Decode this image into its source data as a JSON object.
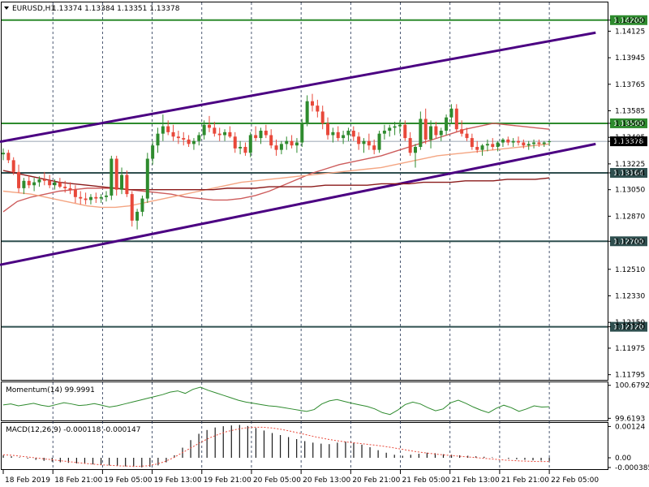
{
  "header": {
    "symbol": "EURUSD,H1",
    "ohlc": "1.13374 1.13384 1.13351 1.13378"
  },
  "chart_data": {
    "type": "candlestick",
    "price_axis": {
      "ticks": [
        "1.14200",
        "1.14125",
        "1.13945",
        "1.13765",
        "1.13585",
        "1.13500",
        "1.13405",
        "1.13378",
        "1.13225",
        "1.13164",
        "1.13050",
        "1.12870",
        "1.12700",
        "1.12510",
        "1.12330",
        "1.12150",
        "1.12120",
        "1.11975",
        "1.11795"
      ],
      "ylim": [
        1.1176,
        1.1432
      ]
    },
    "time_axis": {
      "labels": [
        "18 Feb 2019",
        "18 Feb 21:00",
        "19 Feb 05:00",
        "19 Feb 13:00",
        "19 Feb 21:00",
        "20 Feb 05:00",
        "20 Feb 13:00",
        "20 Feb 21:00",
        "21 Feb 05:00",
        "21 Feb 13:00",
        "21 Feb 21:00",
        "22 Feb 05:00"
      ]
    },
    "horizontal_levels": [
      {
        "price": 1.142,
        "label": "1.14200",
        "color": "#2e8b2e"
      },
      {
        "price": 1.135,
        "label": "1.13500",
        "color": "#2e8b2e"
      },
      {
        "price": 1.13164,
        "label": "1.13164",
        "color": "#2f4f4f"
      },
      {
        "price": 1.127,
        "label": "1.12700",
        "color": "#2f4f4f"
      },
      {
        "price": 1.1212,
        "label": "1.12120",
        "color": "#2f4f4f"
      }
    ],
    "current_price": {
      "price": 1.13378,
      "label": "1.13378"
    },
    "trendlines": [
      {
        "from": [
          0,
          1.13375
        ],
        "to": [
          115,
          1.14115
        ],
        "color": "#4b0082"
      },
      {
        "from": [
          0,
          1.1254
        ],
        "to": [
          115,
          1.1336
        ],
        "color": "#4b0082"
      }
    ],
    "candles": [
      [
        1.1329,
        1.1333,
        1.1325,
        1.133
      ],
      [
        1.133,
        1.1332,
        1.1323,
        1.1325
      ],
      [
        1.1325,
        1.1327,
        1.1315,
        1.1317
      ],
      [
        1.1317,
        1.1322,
        1.1303,
        1.1306
      ],
      [
        1.1306,
        1.1313,
        1.1302,
        1.1311
      ],
      [
        1.1311,
        1.1315,
        1.1306,
        1.1308
      ],
      [
        1.1308,
        1.1313,
        1.1304,
        1.131
      ],
      [
        1.131,
        1.1314,
        1.1307,
        1.1312
      ],
      [
        1.1312,
        1.1317,
        1.1308,
        1.1311
      ],
      [
        1.1311,
        1.1315,
        1.1306,
        1.1308
      ],
      [
        1.1308,
        1.1312,
        1.1305,
        1.131
      ],
      [
        1.131,
        1.1313,
        1.1306,
        1.1307
      ],
      [
        1.1307,
        1.1311,
        1.1303,
        1.1306
      ],
      [
        1.1306,
        1.131,
        1.1302,
        1.1305
      ],
      [
        1.1305,
        1.1308,
        1.1296,
        1.13
      ],
      [
        1.13,
        1.1304,
        1.1295,
        1.1299
      ],
      [
        1.1299,
        1.1303,
        1.1295,
        1.1298
      ],
      [
        1.1298,
        1.1302,
        1.1295,
        1.13
      ],
      [
        1.13,
        1.1303,
        1.1296,
        1.1299
      ],
      [
        1.1299,
        1.1302,
        1.1296,
        1.13
      ],
      [
        1.13,
        1.1304,
        1.1297,
        1.1301
      ],
      [
        1.1301,
        1.1328,
        1.1298,
        1.1326
      ],
      [
        1.1326,
        1.1328,
        1.1301,
        1.1305
      ],
      [
        1.1305,
        1.132,
        1.1302,
        1.1315
      ],
      [
        1.1315,
        1.1318,
        1.13,
        1.1302
      ],
      [
        1.1302,
        1.1304,
        1.128,
        1.1284
      ],
      [
        1.1284,
        1.1292,
        1.1278,
        1.129
      ],
      [
        1.129,
        1.1301,
        1.1287,
        1.1299
      ],
      [
        1.1299,
        1.133,
        1.1296,
        1.1326
      ],
      [
        1.1326,
        1.1338,
        1.1322,
        1.1335
      ],
      [
        1.1335,
        1.1347,
        1.133,
        1.1343
      ],
      [
        1.1343,
        1.1356,
        1.1338,
        1.1348
      ],
      [
        1.1348,
        1.1352,
        1.1342,
        1.1344
      ],
      [
        1.1344,
        1.1349,
        1.1338,
        1.1341
      ],
      [
        1.1341,
        1.1345,
        1.1336,
        1.134
      ],
      [
        1.134,
        1.1344,
        1.1335,
        1.1339
      ],
      [
        1.1339,
        1.1342,
        1.1334,
        1.1336
      ],
      [
        1.1336,
        1.134,
        1.1332,
        1.1338
      ],
      [
        1.1338,
        1.1344,
        1.1335,
        1.1342
      ],
      [
        1.1342,
        1.1352,
        1.1339,
        1.1349
      ],
      [
        1.1349,
        1.1355,
        1.1344,
        1.1347
      ],
      [
        1.1347,
        1.1351,
        1.1341,
        1.1343
      ],
      [
        1.1343,
        1.1347,
        1.1338,
        1.1342
      ],
      [
        1.1342,
        1.1346,
        1.1338,
        1.1344
      ],
      [
        1.1344,
        1.1348,
        1.134,
        1.1341
      ],
      [
        1.1341,
        1.1344,
        1.133,
        1.1333
      ],
      [
        1.1333,
        1.1338,
        1.1329,
        1.1334
      ],
      [
        1.1334,
        1.1337,
        1.1328,
        1.133
      ],
      [
        1.133,
        1.1344,
        1.1327,
        1.1342
      ],
      [
        1.1342,
        1.1348,
        1.1338,
        1.134
      ],
      [
        1.134,
        1.1347,
        1.1336,
        1.1345
      ],
      [
        1.1345,
        1.1349,
        1.134,
        1.1342
      ],
      [
        1.1342,
        1.1346,
        1.1333,
        1.1335
      ],
      [
        1.1335,
        1.1339,
        1.1328,
        1.1332
      ],
      [
        1.1332,
        1.1338,
        1.1329,
        1.1336
      ],
      [
        1.1336,
        1.1341,
        1.1332,
        1.1338
      ],
      [
        1.1338,
        1.1342,
        1.1333,
        1.1335
      ],
      [
        1.1335,
        1.134,
        1.133,
        1.1337
      ],
      [
        1.1337,
        1.1353,
        1.1334,
        1.135
      ],
      [
        1.135,
        1.1369,
        1.1348,
        1.1365
      ],
      [
        1.1365,
        1.137,
        1.1358,
        1.1362
      ],
      [
        1.1362,
        1.1366,
        1.1354,
        1.1358
      ],
      [
        1.1358,
        1.1362,
        1.1346,
        1.135
      ],
      [
        1.135,
        1.1354,
        1.1339,
        1.1342
      ],
      [
        1.1342,
        1.1347,
        1.1337,
        1.1344
      ],
      [
        1.1344,
        1.1348,
        1.1338,
        1.134
      ],
      [
        1.134,
        1.1345,
        1.1336,
        1.1342
      ],
      [
        1.1342,
        1.1347,
        1.1338,
        1.1345
      ],
      [
        1.1345,
        1.1348,
        1.1338,
        1.1341
      ],
      [
        1.1341,
        1.1344,
        1.1332,
        1.1336
      ],
      [
        1.1336,
        1.134,
        1.133,
        1.1338
      ],
      [
        1.1338,
        1.1343,
        1.1332,
        1.1335
      ],
      [
        1.1335,
        1.1339,
        1.1329,
        1.1332
      ],
      [
        1.1332,
        1.1345,
        1.133,
        1.1343
      ],
      [
        1.1343,
        1.1349,
        1.1339,
        1.1345
      ],
      [
        1.1345,
        1.1349,
        1.1341,
        1.1347
      ],
      [
        1.1347,
        1.1351,
        1.1342,
        1.1348
      ],
      [
        1.1348,
        1.1352,
        1.1343,
        1.1349
      ],
      [
        1.1349,
        1.1352,
        1.1338,
        1.134
      ],
      [
        1.134,
        1.1344,
        1.1328,
        1.133
      ],
      [
        1.133,
        1.1336,
        1.132,
        1.1334
      ],
      [
        1.1334,
        1.1358,
        1.1332,
        1.1353
      ],
      [
        1.1353,
        1.136,
        1.1336,
        1.1339
      ],
      [
        1.1339,
        1.1352,
        1.1333,
        1.1348
      ],
      [
        1.1348,
        1.1351,
        1.134,
        1.1342
      ],
      [
        1.1342,
        1.1347,
        1.1338,
        1.1345
      ],
      [
        1.1345,
        1.1356,
        1.1342,
        1.1354
      ],
      [
        1.1354,
        1.1363,
        1.135,
        1.136
      ],
      [
        1.136,
        1.1363,
        1.1344,
        1.1346
      ],
      [
        1.1346,
        1.1352,
        1.1341,
        1.1343
      ],
      [
        1.1343,
        1.1347,
        1.1338,
        1.134
      ],
      [
        1.134,
        1.1343,
        1.1332,
        1.1334
      ],
      [
        1.1334,
        1.1338,
        1.133,
        1.1332
      ],
      [
        1.1332,
        1.1336,
        1.1328,
        1.1335
      ],
      [
        1.1335,
        1.1339,
        1.1331,
        1.1336
      ],
      [
        1.1336,
        1.134,
        1.1332,
        1.1334
      ],
      [
        1.1334,
        1.1338,
        1.1331,
        1.1337
      ],
      [
        1.1337,
        1.134,
        1.1334,
        1.1339
      ],
      [
        1.1339,
        1.1341,
        1.1335,
        1.1337
      ],
      [
        1.1337,
        1.134,
        1.1334,
        1.1338
      ],
      [
        1.1338,
        1.1341,
        1.1335,
        1.1337
      ],
      [
        1.1337,
        1.1339,
        1.1333,
        1.1335
      ],
      [
        1.1335,
        1.1338,
        1.1332,
        1.1336
      ],
      [
        1.1336,
        1.1339,
        1.1333,
        1.1337
      ],
      [
        1.1337,
        1.1339,
        1.1334,
        1.1336
      ],
      [
        1.1336,
        1.1338,
        1.1334,
        1.1337
      ],
      [
        1.13374,
        1.13384,
        1.13351,
        1.13378
      ]
    ],
    "moving_averages": [
      {
        "color": "#cd5c5c",
        "values": [
          1.129,
          1.1297,
          1.13,
          1.1302,
          1.1304,
          1.1305,
          1.1306,
          1.1306,
          1.1306,
          1.1305,
          1.1304,
          1.1303,
          1.1302,
          1.13,
          1.1299,
          1.1298,
          1.1298,
          1.1299,
          1.1301,
          1.1304,
          1.1308,
          1.1312,
          1.1316,
          1.1319,
          1.1322,
          1.1324,
          1.1326,
          1.1328,
          1.1331,
          1.1334,
          1.1337,
          1.134,
          1.1343,
          1.1346,
          1.1348,
          1.135,
          1.1349,
          1.1348,
          1.1347,
          1.1346
        ]
      },
      {
        "color": "#f4a582",
        "values": [
          1.1304,
          1.1303,
          1.1302,
          1.13,
          1.1298,
          1.1296,
          1.1294,
          1.1293,
          1.1293,
          1.1294,
          1.1296,
          1.1298,
          1.13,
          1.1302,
          1.1304,
          1.1306,
          1.1308,
          1.131,
          1.1311,
          1.1312,
          1.1313,
          1.1314,
          1.1315,
          1.1316,
          1.1317,
          1.1318,
          1.1319,
          1.132,
          1.1322,
          1.1324,
          1.1326,
          1.1328,
          1.1329,
          1.133,
          1.1331,
          1.1332,
          1.1333,
          1.1334,
          1.1335,
          1.1336
        ]
      },
      {
        "color": "#8b1a1a",
        "values": [
          1.1318,
          1.1316,
          1.1314,
          1.1312,
          1.131,
          1.1309,
          1.1308,
          1.1307,
          1.1306,
          1.1305,
          1.1305,
          1.1305,
          1.1305,
          1.1305,
          1.1305,
          1.1305,
          1.1306,
          1.1306,
          1.1306,
          1.1307,
          1.1307,
          1.1307,
          1.1307,
          1.1308,
          1.1308,
          1.1308,
          1.1308,
          1.1309,
          1.1309,
          1.1309,
          1.131,
          1.131,
          1.131,
          1.1311,
          1.1311,
          1.1311,
          1.1312,
          1.1312,
          1.1312,
          1.1313
        ]
      }
    ],
    "momentum": {
      "label": "Momentum(14) 99.9991",
      "ticks": [
        "100.6792",
        "99.6193"
      ],
      "ylim": [
        99.55,
        100.75
      ],
      "color": "#2e8b2e",
      "values": [
        100.05,
        100.08,
        100.02,
        100.06,
        100.1,
        100.04,
        100.0,
        100.06,
        100.12,
        100.08,
        100.03,
        100.05,
        100.09,
        100.04,
        99.98,
        100.02,
        100.08,
        100.14,
        100.2,
        100.26,
        100.32,
        100.38,
        100.46,
        100.5,
        100.42,
        100.55,
        100.62,
        100.52,
        100.44,
        100.36,
        100.28,
        100.2,
        100.14,
        100.1,
        100.06,
        100.02,
        100.0,
        99.96,
        99.92,
        99.88,
        99.84,
        99.9,
        100.08,
        100.18,
        100.22,
        100.16,
        100.1,
        100.05,
        100.0,
        99.92,
        99.8,
        99.74,
        99.88,
        100.06,
        100.14,
        100.08,
        99.96,
        99.86,
        99.92,
        100.12,
        100.2,
        100.1,
        99.98,
        99.88,
        99.8,
        99.94,
        100.04,
        99.96,
        99.84,
        99.92,
        100.02,
        99.98,
        99.99
      ]
    },
    "macd": {
      "label": "MACD(12,26,9) -0.000118 -0.000147",
      "ticks": [
        "0.00124",
        "0.00",
        "-0.000385"
      ],
      "ylim": [
        -0.00045,
        0.00135
      ],
      "histogram": [
        0.0001,
        6e-05,
        2e-05,
        -3e-05,
        -8e-05,
        -0.00012,
        -0.00015,
        -0.00018,
        -0.0002,
        -0.00022,
        -0.00024,
        -0.00026,
        -0.00028,
        -0.0003,
        -0.00032,
        -0.00034,
        -0.00036,
        -0.00038,
        -0.00036,
        -0.0003,
        -0.00018,
        0.0001,
        0.0004,
        0.0007,
        0.00095,
        0.0011,
        0.0012,
        0.00125,
        0.00128,
        0.0013,
        0.00126,
        0.00118,
        0.00108,
        0.00098,
        0.0009,
        0.00082,
        0.00074,
        0.00066,
        0.0006,
        0.00056,
        0.00054,
        0.0006,
        0.00064,
        0.0006,
        0.00052,
        0.00042,
        0.0003,
        0.0002,
        0.00012,
        8e-05,
        0.00012,
        0.00016,
        0.0002,
        0.00018,
        0.00014,
        0.00012,
        0.0001,
        8e-05,
        6e-05,
        4e-05,
        2e-05,
        0.0,
        -4e-05,
        -6e-05,
        -8e-05,
        -0.0001,
        -0.00011,
        -0.00012
      ],
      "signal": [
        0.00012,
        0.0001,
        6e-05,
        2e-05,
        -2e-05,
        -6e-05,
        -0.0001,
        -0.00014,
        -0.00018,
        -0.00022,
        -0.00025,
        -0.00028,
        -0.0003,
        -0.00032,
        -0.00033,
        -0.00034,
        -0.00032,
        -0.00026,
        -0.00016,
        0.0,
        0.0002,
        0.0004,
        0.0006,
        0.00078,
        0.00092,
        0.00104,
        0.00112,
        0.00118,
        0.00121,
        0.00121,
        0.00118,
        0.00113,
        0.00106,
        0.00098,
        0.0009,
        0.00082,
        0.00075,
        0.00069,
        0.00064,
        0.0006,
        0.00056,
        0.00052,
        0.00048,
        0.00043,
        0.00037,
        0.00031,
        0.00025,
        0.0002,
        0.00016,
        0.00012,
        9e-05,
        6e-05,
        3e-05,
        0.0,
        -3e-05,
        -6e-05,
        -9e-05,
        -0.00011,
        -0.00013,
        -0.00014,
        -0.00015,
        -0.00015
      ]
    },
    "colors": {
      "bull": "#2e8b2e",
      "bear": "#e8483a",
      "grid": "#1f2f4f"
    }
  }
}
